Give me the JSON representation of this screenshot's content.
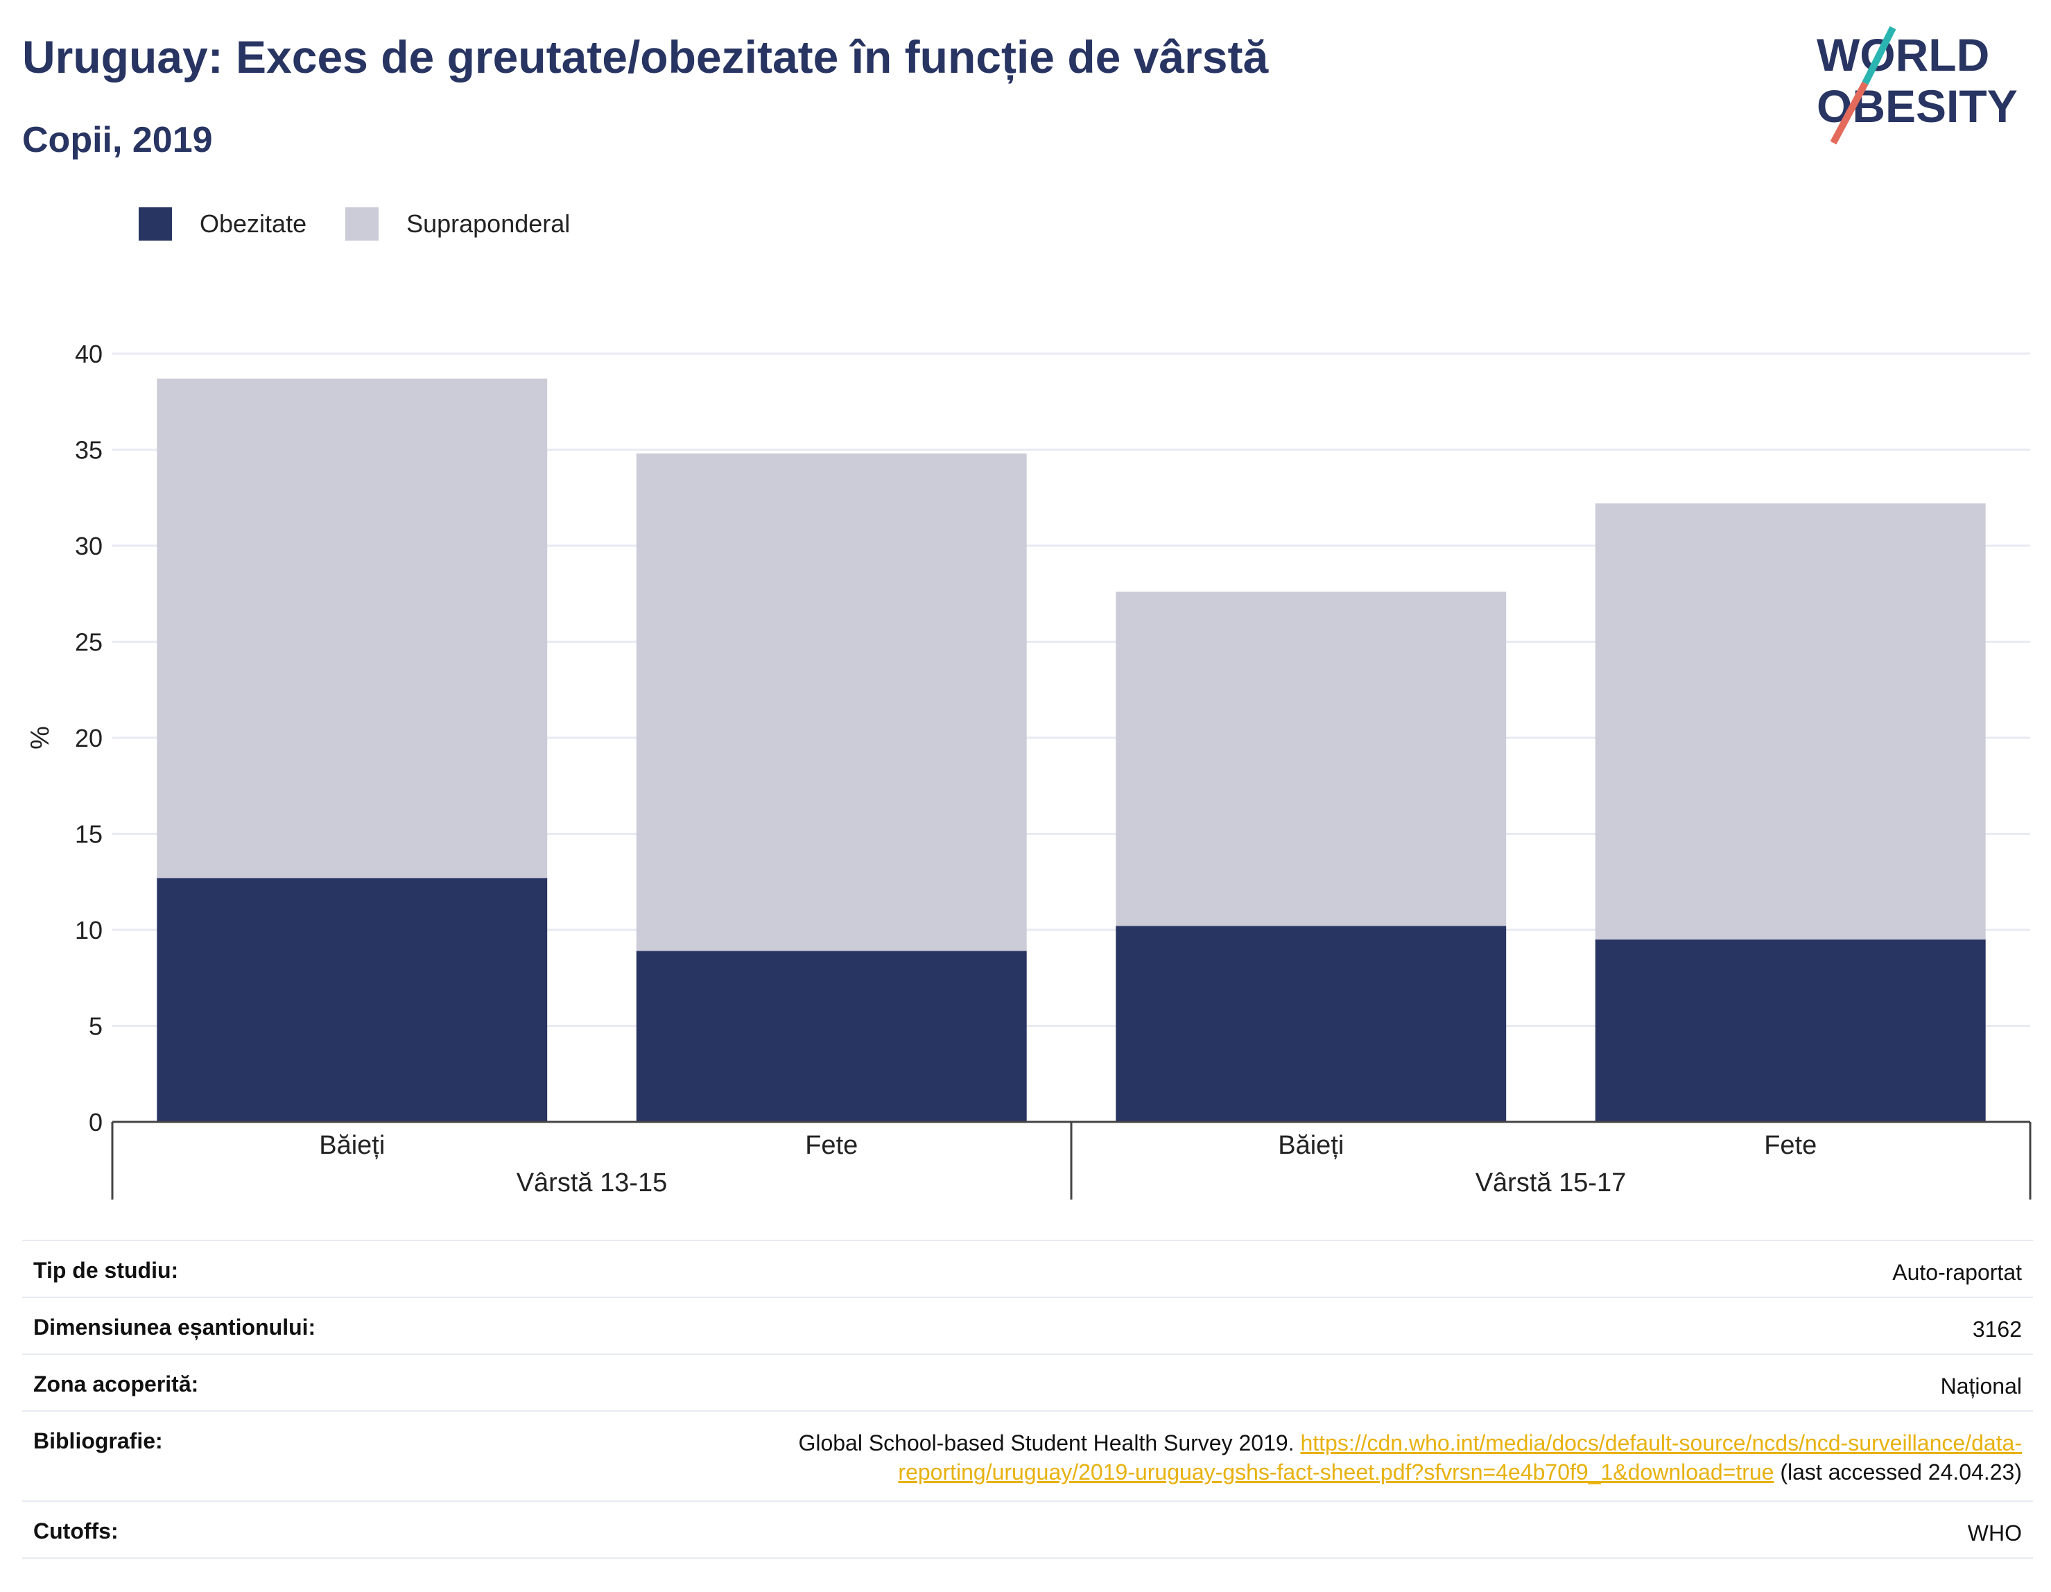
{
  "title": "Uruguay: Exces de greutate/obezitate în funcție de vârstă",
  "subtitle": "Copii, 2019",
  "logo": {
    "line1": "WORLD",
    "line2": "OBESITY"
  },
  "colors": {
    "obesity": "#283462",
    "overweight": "#cbccd8",
    "accent_teal": "#2bb5b0",
    "accent_red": "#e46b5c",
    "link": "#e8b10d"
  },
  "chart_data": {
    "type": "bar",
    "stacked": true,
    "groups": [
      {
        "label": "Vârstă 13-15",
        "categories": [
          "Băieți",
          "Fete"
        ]
      },
      {
        "label": "Vârstă 15-17",
        "categories": [
          "Băieți",
          "Fete"
        ]
      }
    ],
    "categories": [
      "Băieți",
      "Fete",
      "Băieți",
      "Fete"
    ],
    "series": [
      {
        "name": "Obezitate",
        "values": [
          12.7,
          8.9,
          10.2,
          9.5
        ]
      },
      {
        "name": "Supraponderal",
        "values": [
          26.0,
          25.9,
          17.4,
          22.7
        ]
      }
    ],
    "ylabel": "%",
    "ylim": [
      0,
      40
    ],
    "yticks": [
      "0",
      "5",
      "10",
      "15",
      "20",
      "25",
      "30",
      "35",
      "40"
    ],
    "grid": true,
    "legend": "top-left"
  },
  "info": [
    {
      "key": "Tip de studiu:",
      "value": "Auto-raportat"
    },
    {
      "key": "Dimensiunea eșantionului:",
      "value": "3162"
    },
    {
      "key": "Zona acoperită:",
      "value": "Național"
    },
    {
      "key": "Bibliografie:",
      "value_prefix": "Global School-based Student Health Survey 2019. ",
      "link_line1": "https://cdn.who.int/media/docs/default-source/ncds/ncd-surveillance/data-",
      "link_line2": "reporting/uruguay/2019-uruguay-gshs-fact-sheet.pdf?sfvrsn=4e4b70f9_1&download=true",
      "value_suffix": " (last accessed 24.04.23)"
    },
    {
      "key": "Cutoffs:",
      "value": "WHO"
    }
  ]
}
